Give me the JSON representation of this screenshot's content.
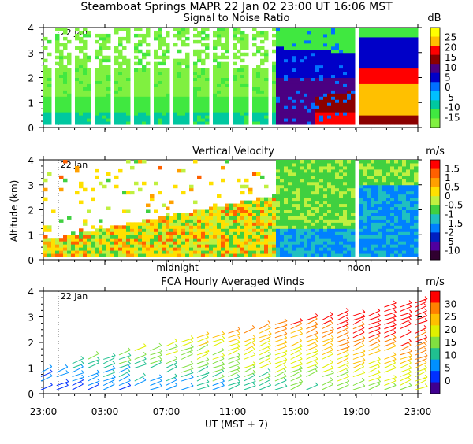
{
  "header": {
    "title": "Steamboat Springs  MAPR 22 Jan 02  23:00 UT  16:06  MST"
  },
  "date_label": "22 Jan",
  "x_axis": {
    "tick_labels": [
      "23:00",
      "03:00",
      "07:00",
      "11:00",
      "15:00",
      "19:00",
      "23:00"
    ],
    "label": "UT  (MST + 7)",
    "annotations": [
      "midnight",
      "noon"
    ]
  },
  "chart_data": [
    {
      "type": "heatmap",
      "title": "Signal to Noise Ratio",
      "unit": "dB",
      "ylim": [
        0,
        4
      ],
      "yticks": [
        "0",
        "1",
        "2",
        "3",
        "4"
      ],
      "colorbar_labels": [
        "25",
        "20",
        "15",
        "10",
        "5",
        "0",
        "-5",
        "-10",
        "-15"
      ],
      "colors": [
        "#ffff00",
        "#ffc000",
        "#ff0000",
        "#8b0000",
        "#4b0082",
        "#0000c8",
        "#0070ff",
        "#00c0ff",
        "#00c8a0",
        "#40e840",
        "#80f040"
      ]
    },
    {
      "type": "heatmap",
      "title": "Vertical Velocity",
      "unit": "m/s",
      "ylabel": "Altitude (km)",
      "ylim": [
        0,
        4
      ],
      "yticks": [
        "0",
        "1",
        "2",
        "3",
        "4"
      ],
      "colorbar_labels": [
        "1.5",
        "1",
        "0.5",
        "0",
        "-0.5",
        "-1",
        "-1.5",
        "-2",
        "-5",
        "-10"
      ],
      "colors": [
        "#ff0000",
        "#ff6000",
        "#ffa000",
        "#ffe000",
        "#c0f040",
        "#40d040",
        "#20c0c0",
        "#0080ff",
        "#0020c0",
        "#5000a0",
        "#300030"
      ]
    },
    {
      "type": "scatter",
      "title": "FCA Hourly Averaged Winds",
      "unit": "m/s",
      "ylim": [
        0,
        4
      ],
      "yticks": [
        "0",
        "1",
        "2",
        "3",
        "4"
      ],
      "colorbar_labels": [
        "30",
        "25",
        "20",
        "15",
        "10",
        "5",
        "0"
      ],
      "colors": [
        "#ff0000",
        "#ff8000",
        "#ffc000",
        "#e0f000",
        "#80e040",
        "#20c090",
        "#0090ff",
        "#0030ff",
        "#400090"
      ]
    }
  ]
}
